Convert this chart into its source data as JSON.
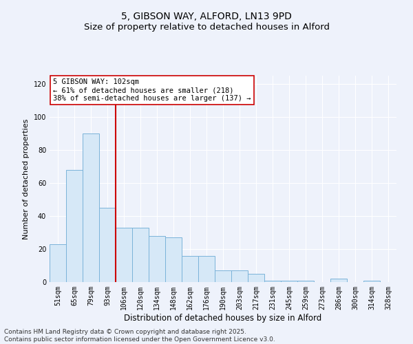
{
  "title": "5, GIBSON WAY, ALFORD, LN13 9PD",
  "subtitle": "Size of property relative to detached houses in Alford",
  "xlabel": "Distribution of detached houses by size in Alford",
  "ylabel": "Number of detached properties",
  "categories": [
    "51sqm",
    "65sqm",
    "79sqm",
    "93sqm",
    "106sqm",
    "120sqm",
    "134sqm",
    "148sqm",
    "162sqm",
    "176sqm",
    "190sqm",
    "203sqm",
    "217sqm",
    "231sqm",
    "245sqm",
    "259sqm",
    "273sqm",
    "286sqm",
    "300sqm",
    "314sqm",
    "328sqm"
  ],
  "values": [
    23,
    68,
    90,
    45,
    33,
    33,
    28,
    27,
    16,
    16,
    7,
    7,
    5,
    1,
    1,
    1,
    0,
    2,
    0,
    1,
    0
  ],
  "bar_color": "#d6e8f7",
  "bar_edge_color": "#7ab3d9",
  "vline_x_idx": 3,
  "vline_color": "#cc0000",
  "annotation_text": "5 GIBSON WAY: 102sqm\n← 61% of detached houses are smaller (218)\n38% of semi-detached houses are larger (137) →",
  "annotation_box_color": "white",
  "annotation_box_edge": "#cc0000",
  "ylim": [
    0,
    125
  ],
  "yticks": [
    0,
    20,
    40,
    60,
    80,
    100,
    120
  ],
  "background_color": "#eef2fb",
  "grid_color": "#ffffff",
  "footer": "Contains HM Land Registry data © Crown copyright and database right 2025.\nContains public sector information licensed under the Open Government Licence v3.0.",
  "title_fontsize": 10,
  "subtitle_fontsize": 9.5,
  "xlabel_fontsize": 8.5,
  "ylabel_fontsize": 8,
  "tick_fontsize": 7,
  "annotation_fontsize": 7.5,
  "footer_fontsize": 6.5
}
